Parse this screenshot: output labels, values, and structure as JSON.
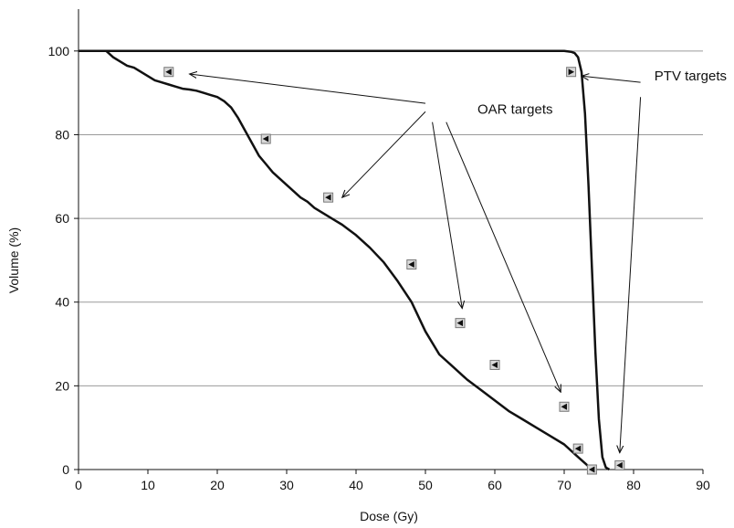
{
  "chart_data": {
    "type": "line",
    "title": "",
    "xlabel": "Dose (Gy)",
    "ylabel": "Volume (%)",
    "xlim": [
      0,
      90
    ],
    "ylim": [
      0,
      110
    ],
    "x_ticks": [
      0,
      10,
      20,
      30,
      40,
      50,
      60,
      70,
      80,
      90
    ],
    "y_ticks": [
      0,
      20,
      40,
      60,
      80,
      100
    ],
    "grid": "horizontal",
    "colors": {
      "line": "#111111",
      "grid": "#9a9a9a",
      "marker_fill": "#d9d9d9",
      "marker_glyph": "#111111"
    },
    "series": [
      {
        "kind": "line",
        "x": [
          0,
          4,
          5,
          6,
          7,
          8,
          9,
          10,
          11,
          12,
          13,
          14,
          15,
          16,
          17,
          18,
          19,
          20,
          21,
          22,
          23,
          24,
          25,
          26,
          27,
          28,
          29,
          30,
          31,
          32,
          33,
          34,
          35,
          36,
          37,
          38,
          40,
          42,
          44,
          46,
          48,
          50,
          52,
          54,
          56,
          58,
          60,
          62,
          64,
          66,
          68,
          70,
          71,
          72,
          73,
          74
        ],
        "y": [
          100,
          100,
          98.5,
          97.5,
          96.5,
          96,
          95,
          94,
          93,
          92.5,
          92,
          91.5,
          91,
          90.8,
          90.5,
          90,
          89.5,
          89,
          88,
          86.5,
          84,
          81,
          78,
          75,
          73,
          71,
          69.5,
          68,
          66.5,
          65,
          64,
          62.5,
          61.5,
          60.5,
          59.5,
          58.5,
          56,
          53,
          49.5,
          45,
          40,
          33,
          27.5,
          24.5,
          21.5,
          19,
          16.5,
          14,
          12,
          10,
          8,
          6,
          4.5,
          3,
          1.5,
          0
        ]
      },
      {
        "kind": "line",
        "x": [
          0,
          70,
          71,
          71.5,
          72,
          72.5,
          73,
          73.5,
          74,
          74.5,
          75,
          75.5,
          76,
          76.5
        ],
        "y": [
          100,
          100,
          99.8,
          99.5,
          98.5,
          95,
          85,
          68,
          48,
          28,
          12,
          3,
          0.5,
          0
        ]
      },
      {
        "kind": "markers",
        "marker": "left-triangle",
        "x": [
          13,
          27,
          36,
          48,
          55,
          60,
          70,
          72,
          74
        ],
        "y": [
          95,
          79,
          65,
          49,
          35,
          25,
          15,
          5,
          0
        ]
      },
      {
        "kind": "markers",
        "marker": "right-triangle",
        "x": [
          71
        ],
        "y": [
          95
        ]
      },
      {
        "kind": "markers",
        "marker": "left-triangle",
        "x": [
          78
        ],
        "y": [
          1
        ]
      }
    ],
    "annotations": [
      {
        "text": "OAR targets",
        "anchor": [
          56,
          85.5
        ],
        "text_at": [
          57.5,
          85
        ],
        "arrows": [
          {
            "from": [
              50,
              87.5
            ],
            "to": [
              16,
              94.5
            ]
          },
          {
            "from": [
              50,
              85.5
            ],
            "to": [
              38,
              65
            ]
          },
          {
            "from": [
              51,
              83
            ],
            "to": [
              55.3,
              38.5
            ]
          },
          {
            "from": [
              53,
              83
            ],
            "to": [
              69.5,
              18.5
            ]
          }
        ]
      },
      {
        "text": "PTV targets",
        "anchor": [
          82.5,
          93.5
        ],
        "text_at": [
          83,
          93
        ],
        "arrows": [
          {
            "from": [
              81,
              92.5
            ],
            "to": [
              72.5,
              94
            ]
          },
          {
            "from": [
              81,
              89
            ],
            "to": [
              78,
              4
            ]
          }
        ]
      }
    ]
  }
}
